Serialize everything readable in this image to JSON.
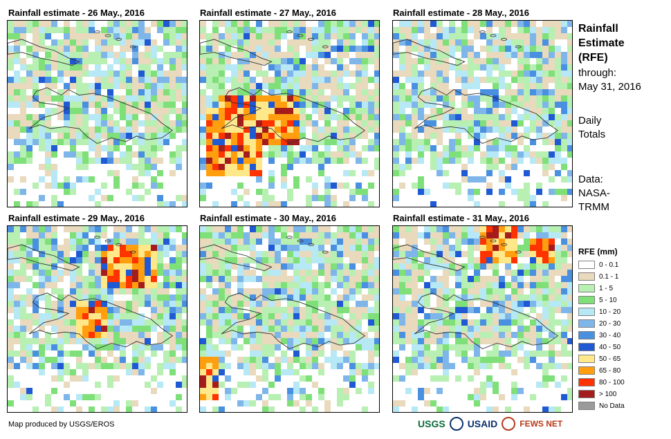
{
  "panels": [
    {
      "title": "Rainfall estimate - 26 May., 2016",
      "seed": 26,
      "hot": []
    },
    {
      "title": "Rainfall estimate - 27 May., 2016",
      "seed": 27,
      "hot": [
        [
          0.02,
          0.45,
          0.3,
          0.38
        ],
        [
          0.1,
          0.4,
          0.45,
          0.25
        ]
      ]
    },
    {
      "title": "Rainfall estimate - 28 May., 2016",
      "seed": 28,
      "hot": []
    },
    {
      "title": "Rainfall estimate - 29 May., 2016",
      "seed": 29,
      "hot": [
        [
          0.5,
          0.08,
          0.3,
          0.25
        ],
        [
          0.35,
          0.4,
          0.2,
          0.18
        ]
      ]
    },
    {
      "title": "Rainfall estimate - 30 May., 2016",
      "seed": 30,
      "hot": [
        [
          0.0,
          0.68,
          0.07,
          0.22
        ]
      ]
    },
    {
      "title": "Rainfall estimate - 31 May., 2016",
      "seed": 31,
      "hot": [
        [
          0.45,
          0.0,
          0.22,
          0.18
        ],
        [
          0.75,
          0.05,
          0.12,
          0.12
        ]
      ]
    }
  ],
  "side": {
    "title_lines": [
      "Rainfall",
      "Estimate",
      "(RFE)"
    ],
    "through_label": "through:",
    "through_date": "May 31, 2016",
    "daily_lines": [
      "Daily",
      "Totals"
    ],
    "data_lines": [
      "Data:",
      "NASA-",
      "TRMM"
    ]
  },
  "legend": {
    "title": "RFE (mm)",
    "items": [
      {
        "label": "0 - 0.1",
        "color": "#ffffff"
      },
      {
        "label": "0.1 - 1",
        "color": "#e9d9bd"
      },
      {
        "label": "1 - 5",
        "color": "#b8efb2"
      },
      {
        "label": "5 - 10",
        "color": "#7fe07a"
      },
      {
        "label": "10 - 20",
        "color": "#b6e9f5"
      },
      {
        "label": "20 - 30",
        "color": "#7fb6ea"
      },
      {
        "label": "30 - 40",
        "color": "#4a90e0"
      },
      {
        "label": "40 - 50",
        "color": "#2059d4"
      },
      {
        "label": "50 - 65",
        "color": "#ffe88a"
      },
      {
        "label": "65 - 80",
        "color": "#ff9f10"
      },
      {
        "label": "80 - 100",
        "color": "#ff3300"
      },
      {
        "label": "> 100",
        "color": "#a51c1c"
      },
      {
        "label": "No Data",
        "color": "#9a9a9a"
      }
    ]
  },
  "footer": {
    "credit": "Map produced by USGS/EROS",
    "logo_usgs": "USGS",
    "logo_usaid": "USAID",
    "logo_fews": "FEWS NET"
  }
}
